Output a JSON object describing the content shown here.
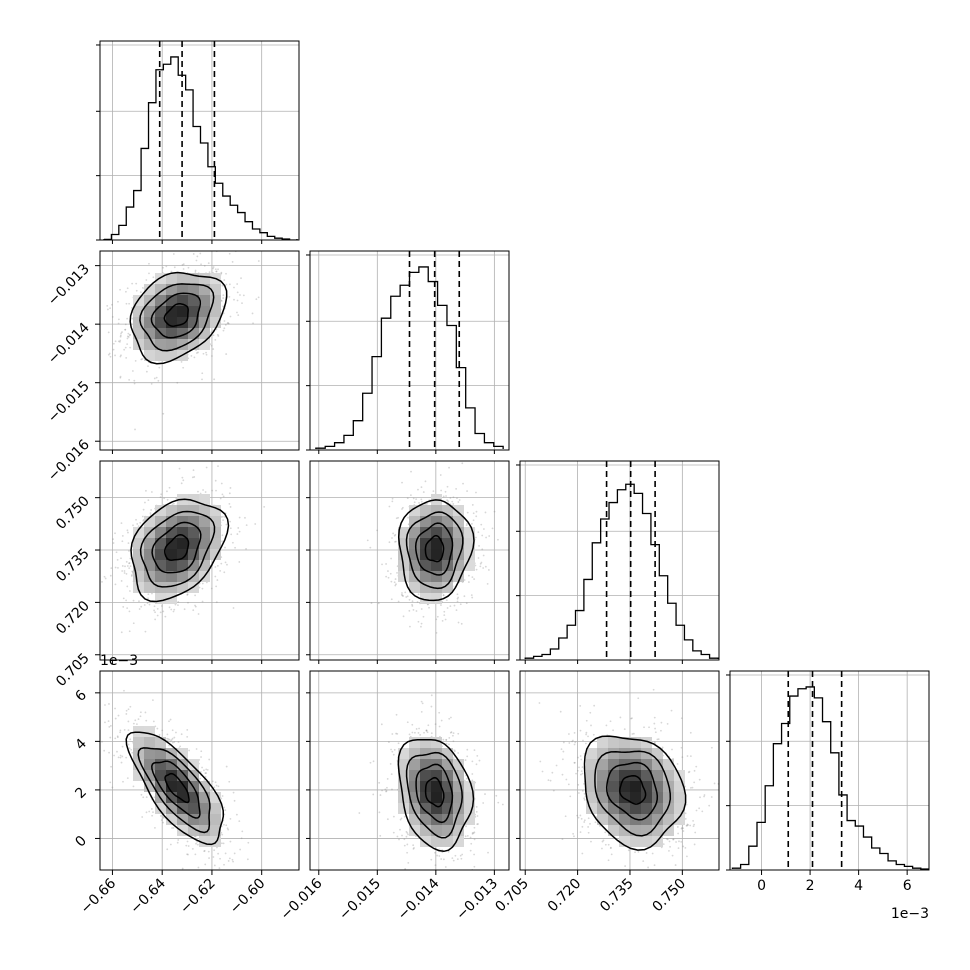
{
  "chart_data": {
    "type": "corner",
    "grid": true,
    "parameters": [
      {
        "range": [
          -0.665,
          -0.585
        ],
        "ticks": [
          -0.66,
          -0.64,
          -0.62,
          -0.6
        ],
        "tick_labels": [
          "−0.66",
          "−0.64",
          "−0.62",
          "−0.60"
        ],
        "offset_text": "",
        "quantiles": [
          -0.641,
          -0.632,
          -0.619
        ],
        "hist": [
          0.003,
          0.03,
          0.08,
          0.18,
          0.27,
          0.5,
          0.75,
          0.93,
          0.96,
          1.0,
          0.9,
          0.82,
          0.62,
          0.53,
          0.4,
          0.31,
          0.24,
          0.19,
          0.15,
          0.1,
          0.06,
          0.04,
          0.02,
          0.01,
          0.005,
          0.0
        ]
      },
      {
        "range": [
          -0.01615,
          -0.01275
        ],
        "ticks": [
          -0.016,
          -0.015,
          -0.014,
          -0.013
        ],
        "tick_labels": [
          "−0.016",
          "−0.015",
          "−0.014",
          "−0.013"
        ],
        "offset_text": "",
        "quantiles": [
          -0.01445,
          -0.01402,
          -0.0136
        ],
        "hist": [
          0.01,
          0.02,
          0.04,
          0.08,
          0.16,
          0.31,
          0.51,
          0.72,
          0.84,
          0.9,
          0.97,
          1.0,
          0.92,
          0.79,
          0.68,
          0.45,
          0.23,
          0.09,
          0.04,
          0.02
        ],
        "hist_lo": -0.01605,
        "hist_hi": -0.01285
      },
      {
        "range": [
          0.7035,
          0.7605
        ],
        "ticks": [
          0.705,
          0.72,
          0.735,
          0.75
        ],
        "tick_labels": [
          "0.705",
          "0.720",
          "0.735",
          "0.750"
        ],
        "offset_text": "",
        "quantiles": [
          0.7283,
          0.7352,
          0.7422
        ],
        "hist": [
          0.01,
          0.02,
          0.03,
          0.06,
          0.12,
          0.19,
          0.27,
          0.44,
          0.64,
          0.77,
          0.86,
          0.93,
          0.96,
          0.91,
          0.8,
          0.63,
          0.46,
          0.31,
          0.19,
          0.11,
          0.05,
          0.03,
          0.01
        ],
        "hist_lo": 0.705,
        "hist_hi": 0.7602
      },
      {
        "range": [
          -1.3,
          6.9
        ],
        "ticks": [
          0,
          2,
          4,
          6
        ],
        "tick_labels": [
          "0",
          "2",
          "4",
          "6"
        ],
        "offset_text": "1e−3",
        "quantiles": [
          1.1,
          2.1,
          3.3
        ],
        "hist": [
          0.01,
          0.03,
          0.13,
          0.26,
          0.46,
          0.69,
          0.8,
          0.95,
          0.99,
          1.0,
          0.94,
          0.81,
          0.64,
          0.41,
          0.27,
          0.24,
          0.18,
          0.12,
          0.09,
          0.05,
          0.03,
          0.02,
          0.01,
          0.005
        ],
        "hist_lo": -1.2,
        "hist_hi": 6.9
      }
    ],
    "hist_density_ticks": [
      0.0,
      0.33,
      0.66,
      1.0
    ],
    "pairs": [
      {
        "row": 1,
        "col": 0,
        "center": [
          -0.634,
          -0.01385
        ],
        "sigma": [
          0.0095,
          0.00038
        ],
        "rho": 0.28
      },
      {
        "row": 2,
        "col": 0,
        "center": [
          -0.634,
          0.7355
        ],
        "sigma": [
          0.0095,
          0.0072
        ],
        "rho": 0.32
      },
      {
        "row": 2,
        "col": 1,
        "center": [
          -0.01402,
          0.7352
        ],
        "sigma": [
          0.00031,
          0.0072
        ],
        "rho": 0.05
      },
      {
        "row": 3,
        "col": 0,
        "center": [
          -0.634,
          2.1
        ],
        "sigma": [
          0.0095,
          1.15
        ],
        "rho": -0.72
      },
      {
        "row": 3,
        "col": 1,
        "center": [
          -0.01402,
          1.9
        ],
        "sigma": [
          0.00031,
          1.15
        ],
        "rho": -0.22
      },
      {
        "row": 3,
        "col": 2,
        "center": [
          0.7358,
          2.0
        ],
        "sigma": [
          0.0072,
          1.15
        ],
        "rho": -0.18
      }
    ],
    "contour_levels_sigma": [
      0.5,
      1.0,
      1.5,
      2.0
    ]
  }
}
